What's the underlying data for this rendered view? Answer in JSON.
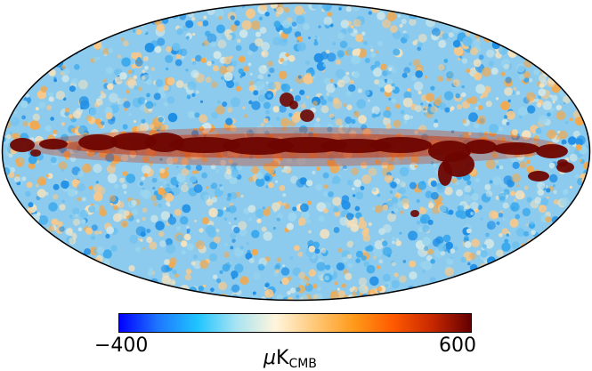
{
  "colorbar": {
    "min_label": "−400",
    "max_label": "600",
    "unit_prefix": "μ",
    "unit_symbol": "K",
    "unit_subscript": "CMB",
    "colors": [
      "#0000ff",
      "#1e78ff",
      "#1fc4ff",
      "#a9e4f2",
      "#fff5dc",
      "#ffc878",
      "#ff9a1a",
      "#ff5a00",
      "#c82800",
      "#640000"
    ]
  },
  "map": {
    "projection": "mollweide",
    "background_palette": [
      "#1f8fe6",
      "#3aa8ec",
      "#6cc0ef",
      "#9bd5ee",
      "#cfe6e8",
      "#f4e2bf",
      "#f7c88b",
      "#f3a94f"
    ],
    "plane_color": "#6e0500",
    "plane_edge_color": "#c83a10",
    "outline_color": "#000000"
  }
}
